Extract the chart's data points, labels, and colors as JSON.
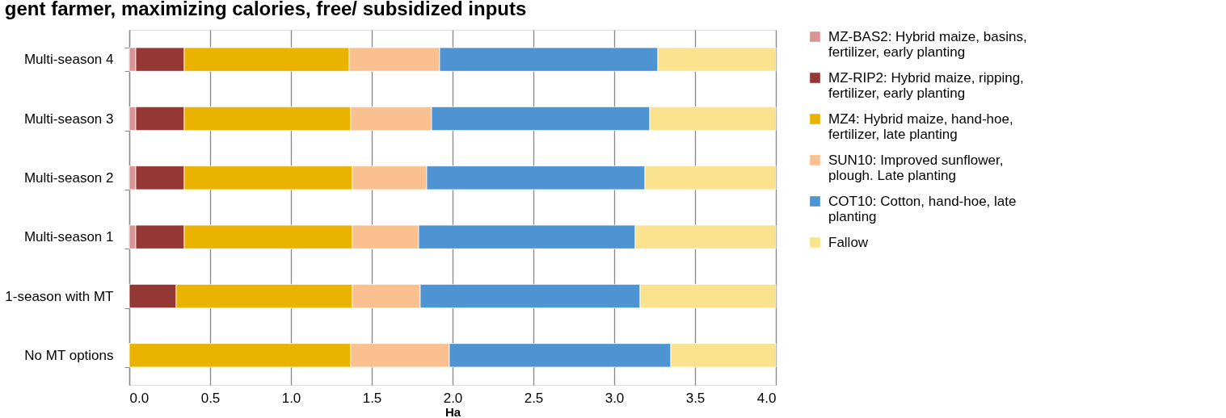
{
  "chart_data": {
    "type": "bar",
    "orientation": "horizontal",
    "stacked": true,
    "title": "gent farmer, maximizing calories, free/ subsidized inputs",
    "xlabel": "Ha",
    "categories": [
      "Multi-season 4",
      "Multi-season 3",
      "Multi-season 2",
      "Multi-season 1",
      "1-season with MT",
      "No MT options"
    ],
    "series": [
      {
        "name": "MZ-BAS2: Hybrid maize, basins, fertilizer, early planting",
        "color": "#d99594",
        "values": [
          0.04,
          0.04,
          0.04,
          0.04,
          0,
          0
        ]
      },
      {
        "name": "MZ-RIP2: Hybrid maize, ripping, fertilizer, early planting",
        "color": "#953735",
        "values": [
          0.3,
          0.3,
          0.3,
          0.3,
          0.29,
          0
        ]
      },
      {
        "name": "MZ4: Hybrid maize, hand-hoe, fertilizer, late planting",
        "color": "#e9b300",
        "values": [
          1.02,
          1.03,
          1.04,
          1.04,
          1.09,
          1.37
        ]
      },
      {
        "name": "SUN10: Improved sunflower, plough. Late planting",
        "color": "#fac090",
        "values": [
          0.56,
          0.5,
          0.46,
          0.41,
          0.42,
          0.61
        ]
      },
      {
        "name": "COT10: Cotton, hand-hoe, late planting",
        "color": "#4f94d2",
        "values": [
          1.35,
          1.35,
          1.35,
          1.34,
          1.36,
          1.37
        ]
      },
      {
        "name": "Fallow",
        "color": "#fbe28f",
        "values": [
          0.73,
          0.78,
          0.81,
          0.87,
          0.84,
          0.65
        ]
      }
    ],
    "xlim": [
      0,
      4
    ],
    "xticks": [
      {
        "value": 0,
        "label": "0.0"
      },
      {
        "value": 0.5,
        "label": "0.5"
      },
      {
        "value": 1,
        "label": "1.0"
      },
      {
        "value": 1.5,
        "label": "1.5"
      },
      {
        "value": 2,
        "label": "2.0"
      },
      {
        "value": 2.5,
        "label": "2.5"
      },
      {
        "value": 3,
        "label": "3.0"
      },
      {
        "value": 3.5,
        "label": "3.5"
      },
      {
        "value": 4,
        "label": "4.0"
      }
    ],
    "grid": "x",
    "legend": "right"
  }
}
